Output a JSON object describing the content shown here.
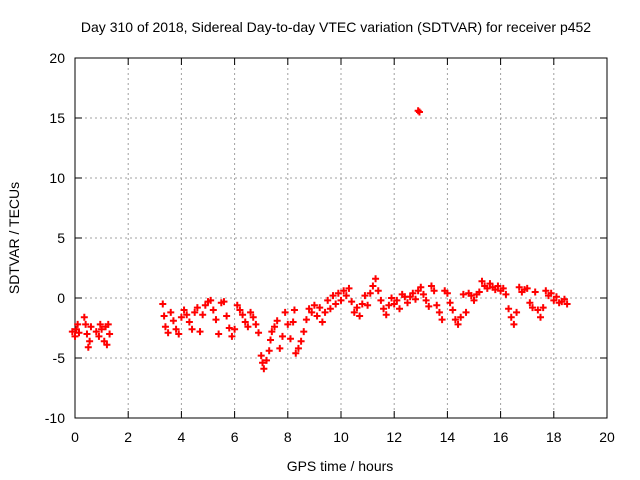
{
  "chart_data": {
    "type": "scatter",
    "title": "Day 310 of 2018, Sidereal Day-to-day VTEC variation (SDTVAR) for receiver p452",
    "xlabel": "GPS time / hours",
    "ylabel": "SDTVAR / TECUs",
    "xlim": [
      0,
      20
    ],
    "ylim": [
      -10,
      20
    ],
    "x_ticks": [
      0,
      2,
      4,
      6,
      8,
      10,
      12,
      14,
      16,
      18,
      20
    ],
    "y_ticks": [
      -10,
      -5,
      0,
      5,
      10,
      15,
      20
    ],
    "x_tick_labels": [
      "0",
      "2",
      "4",
      "6",
      "8",
      "10",
      "12",
      "14",
      "16",
      "18",
      "20"
    ],
    "y_tick_labels": [
      "-10",
      "-5",
      "0",
      "5",
      "10",
      "15",
      "20"
    ],
    "grid": true,
    "marker": "+",
    "color": "#ff0000",
    "series": [
      {
        "name": "p452",
        "points": [
          [
            -0.1,
            -2.8
          ],
          [
            0.0,
            -3.2
          ],
          [
            0.05,
            -2.6
          ],
          [
            0.1,
            -2.2
          ],
          [
            0.15,
            -2.9
          ],
          [
            0.35,
            -1.6
          ],
          [
            0.4,
            -2.2
          ],
          [
            0.45,
            -3.0
          ],
          [
            0.5,
            -4.1
          ],
          [
            0.55,
            -3.6
          ],
          [
            0.6,
            -2.4
          ],
          [
            0.8,
            -2.8
          ],
          [
            0.9,
            -3.2
          ],
          [
            0.95,
            -2.2
          ],
          [
            1.0,
            -2.6
          ],
          [
            1.1,
            -3.6
          ],
          [
            1.15,
            -2.4
          ],
          [
            1.2,
            -3.9
          ],
          [
            1.25,
            -2.2
          ],
          [
            1.3,
            -3.0
          ],
          [
            3.3,
            -0.5
          ],
          [
            3.35,
            -1.5
          ],
          [
            3.4,
            -2.4
          ],
          [
            3.5,
            -2.9
          ],
          [
            3.6,
            -1.2
          ],
          [
            3.7,
            -1.9
          ],
          [
            3.8,
            -2.6
          ],
          [
            3.9,
            -3.0
          ],
          [
            4.0,
            -1.6
          ],
          [
            4.1,
            -1.0
          ],
          [
            4.2,
            -1.4
          ],
          [
            4.3,
            -2.0
          ],
          [
            4.4,
            -2.6
          ],
          [
            4.5,
            -1.2
          ],
          [
            4.6,
            -0.8
          ],
          [
            4.7,
            -2.8
          ],
          [
            4.8,
            -1.4
          ],
          [
            4.9,
            -0.6
          ],
          [
            5.0,
            -0.3
          ],
          [
            5.1,
            -0.2
          ],
          [
            5.2,
            -1.0
          ],
          [
            5.3,
            -1.8
          ],
          [
            5.4,
            -3.0
          ],
          [
            5.5,
            -0.4
          ],
          [
            5.6,
            -0.3
          ],
          [
            5.7,
            -1.5
          ],
          [
            5.8,
            -2.5
          ],
          [
            5.9,
            -3.2
          ],
          [
            6.0,
            -2.6
          ],
          [
            6.1,
            -0.6
          ],
          [
            6.2,
            -1.0
          ],
          [
            6.3,
            -1.4
          ],
          [
            6.4,
            -2.0
          ],
          [
            6.5,
            -2.4
          ],
          [
            6.6,
            -1.2
          ],
          [
            6.7,
            -1.6
          ],
          [
            6.8,
            -2.2
          ],
          [
            6.9,
            -2.9
          ],
          [
            7.0,
            -4.8
          ],
          [
            7.05,
            -5.4
          ],
          [
            7.1,
            -5.9
          ],
          [
            7.2,
            -5.2
          ],
          [
            7.3,
            -4.4
          ],
          [
            7.35,
            -3.5
          ],
          [
            7.4,
            -2.8
          ],
          [
            7.5,
            -2.4
          ],
          [
            7.6,
            -1.9
          ],
          [
            7.7,
            -4.2
          ],
          [
            7.8,
            -3.2
          ],
          [
            7.9,
            -1.2
          ],
          [
            8.0,
            -2.2
          ],
          [
            8.1,
            -3.4
          ],
          [
            8.2,
            -2.0
          ],
          [
            8.25,
            -1.0
          ],
          [
            8.3,
            -4.6
          ],
          [
            8.4,
            -4.2
          ],
          [
            8.5,
            -3.6
          ],
          [
            8.6,
            -2.8
          ],
          [
            8.7,
            -1.8
          ],
          [
            8.8,
            -0.9
          ],
          [
            8.9,
            -1.2
          ],
          [
            9.0,
            -0.6
          ],
          [
            9.1,
            -1.5
          ],
          [
            9.2,
            -0.8
          ],
          [
            9.3,
            -2.0
          ],
          [
            9.4,
            -1.2
          ],
          [
            9.5,
            -0.2
          ],
          [
            9.6,
            -0.9
          ],
          [
            9.7,
            0.2
          ],
          [
            9.8,
            -0.5
          ],
          [
            9.9,
            0.4
          ],
          [
            10.0,
            -0.2
          ],
          [
            10.1,
            0.6
          ],
          [
            10.2,
            0.2
          ],
          [
            10.3,
            0.8
          ],
          [
            10.4,
            -0.3
          ],
          [
            10.5,
            -1.2
          ],
          [
            10.6,
            -0.8
          ],
          [
            10.7,
            -1.5
          ],
          [
            10.8,
            -0.5
          ],
          [
            10.9,
            0.2
          ],
          [
            11.0,
            -0.6
          ],
          [
            11.1,
            0.4
          ],
          [
            11.2,
            1.0
          ],
          [
            11.3,
            1.6
          ],
          [
            11.4,
            0.6
          ],
          [
            11.5,
            -0.2
          ],
          [
            11.6,
            -0.9
          ],
          [
            11.7,
            -1.4
          ],
          [
            11.8,
            -0.6
          ],
          [
            11.9,
            0.0
          ],
          [
            12.0,
            -0.5
          ],
          [
            12.1,
            -0.2
          ],
          [
            12.2,
            -0.9
          ],
          [
            12.3,
            0.3
          ],
          [
            12.4,
            0.1
          ],
          [
            12.5,
            -0.4
          ],
          [
            12.6,
            0.1
          ],
          [
            12.7,
            0.4
          ],
          [
            12.8,
            -0.1
          ],
          [
            12.9,
            0.6
          ],
          [
            13.0,
            0.9
          ],
          [
            13.1,
            0.3
          ],
          [
            13.2,
            -0.2
          ],
          [
            13.3,
            -0.7
          ],
          [
            13.4,
            1.0
          ],
          [
            13.5,
            0.6
          ],
          [
            13.6,
            -0.6
          ],
          [
            13.7,
            -1.2
          ],
          [
            13.8,
            -1.8
          ],
          [
            13.9,
            0.6
          ],
          [
            14.0,
            0.4
          ],
          [
            14.1,
            -0.4
          ],
          [
            14.2,
            -1.0
          ],
          [
            14.3,
            -1.8
          ],
          [
            14.4,
            -2.2
          ],
          [
            14.5,
            -1.6
          ],
          [
            14.6,
            0.3
          ],
          [
            14.7,
            -1.2
          ],
          [
            14.8,
            0.4
          ],
          [
            14.9,
            0.2
          ],
          [
            15.0,
            -0.2
          ],
          [
            15.1,
            0.3
          ],
          [
            15.2,
            0.5
          ],
          [
            15.3,
            1.4
          ],
          [
            15.4,
            1.0
          ],
          [
            15.5,
            0.8
          ],
          [
            15.6,
            1.2
          ],
          [
            15.7,
            0.9
          ],
          [
            15.8,
            0.7
          ],
          [
            15.9,
            1.0
          ],
          [
            16.0,
            0.6
          ],
          [
            16.1,
            0.8
          ],
          [
            16.2,
            0.3
          ],
          [
            16.3,
            -0.9
          ],
          [
            16.4,
            -1.6
          ],
          [
            16.5,
            -2.2
          ],
          [
            16.6,
            -1.2
          ],
          [
            16.7,
            0.9
          ],
          [
            16.8,
            0.5
          ],
          [
            16.9,
            0.7
          ],
          [
            17.0,
            0.8
          ],
          [
            17.1,
            -0.4
          ],
          [
            17.2,
            -0.8
          ],
          [
            17.3,
            0.5
          ],
          [
            17.4,
            -1.0
          ],
          [
            17.5,
            -1.6
          ],
          [
            17.6,
            -0.8
          ],
          [
            17.7,
            0.6
          ],
          [
            17.8,
            0.2
          ],
          [
            17.9,
            0.4
          ],
          [
            18.0,
            -0.2
          ],
          [
            18.1,
            0.1
          ],
          [
            18.2,
            -0.4
          ],
          [
            18.3,
            -0.3
          ],
          [
            18.4,
            -0.1
          ],
          [
            18.5,
            -0.5
          ],
          [
            12.9,
            15.6
          ],
          [
            12.95,
            15.5
          ]
        ]
      }
    ]
  }
}
